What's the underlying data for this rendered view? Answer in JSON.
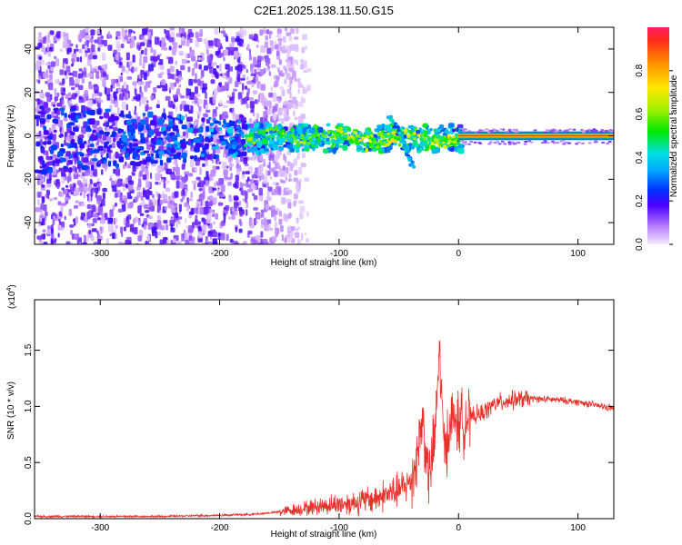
{
  "title": "C2E1.2025.138.11.50.G15",
  "colors": {
    "snr_line": "#e8302a",
    "axis": "#000000",
    "background": "#ffffff"
  },
  "chart_data": [
    {
      "type": "heatmap",
      "xlabel": "Height of straight line (km)",
      "ylabel": "Frequency (Hz)",
      "xlim": [
        -355,
        130
      ],
      "ylim": [
        -50,
        50
      ],
      "xticks": [
        -300,
        -200,
        -100,
        0,
        100
      ],
      "yticks": [
        -40,
        -20,
        0,
        20,
        40
      ],
      "colorbar": {
        "label": "Normalized spectral amplitude",
        "range": [
          0,
          1
        ],
        "ticks": [
          0.0,
          0.2,
          0.4,
          0.6,
          0.8
        ]
      },
      "features": {
        "noise_region_km": [
          -355,
          -140
        ],
        "main_band_center_hz": 0,
        "spur_branch": [
          {
            "x": -60,
            "y": 10
          },
          {
            "x": -48,
            "y": 0
          },
          {
            "x": -40,
            "y": -14
          }
        ],
        "strong_band_start_km": 0,
        "strong_band_halfwidth_hz": 2
      }
    },
    {
      "type": "line",
      "xlabel": "Height of straight line (km)",
      "ylabel": "SNR (10 * v/v)",
      "yscale_label": "(x10",
      "yscale_exp": "4",
      "xlim": [
        -355,
        130
      ],
      "ylim": [
        0,
        1.95
      ],
      "xticks": [
        -300,
        -200,
        -100,
        0,
        100
      ],
      "yticks": [
        "0.0",
        "0.5",
        "1.0",
        "1.5"
      ],
      "series": [
        {
          "x": [
            -355,
            -300,
            -250,
            -200,
            -170,
            -150,
            -130,
            -110,
            -90,
            -70,
            -50,
            -40,
            -35,
            -30,
            -25,
            -20,
            -16,
            -12,
            -8,
            -4,
            0,
            5,
            10,
            20,
            30,
            40,
            50,
            60,
            80,
            100,
            120,
            130
          ],
          "y": [
            0.02,
            0.02,
            0.02,
            0.03,
            0.04,
            0.06,
            0.09,
            0.12,
            0.14,
            0.18,
            0.25,
            0.33,
            0.55,
            0.9,
            0.35,
            0.7,
            1.5,
            0.6,
            0.8,
            0.9,
            0.85,
            0.88,
            0.9,
            0.94,
            1.02,
            1.05,
            1.06,
            1.07,
            1.06,
            1.04,
            1.0,
            0.98
          ]
        }
      ]
    }
  ]
}
